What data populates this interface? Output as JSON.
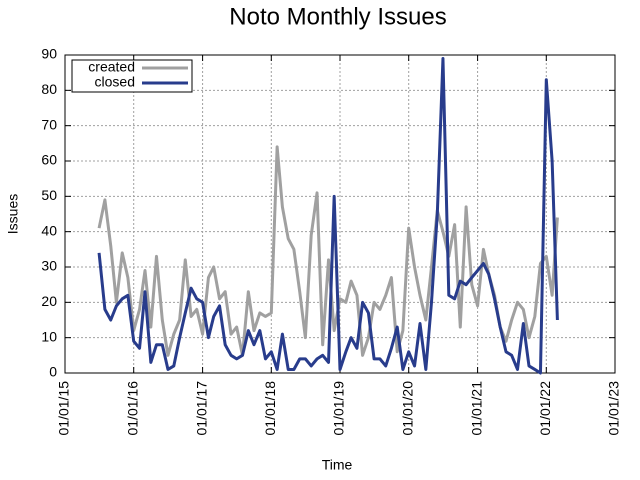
{
  "chart_data": {
    "type": "line",
    "title": "Noto Monthly Issues",
    "xlabel": "Time",
    "ylabel": "Issues",
    "x": [
      "2015-07",
      "2015-08",
      "2015-09",
      "2015-10",
      "2015-11",
      "2015-12",
      "2016-01",
      "2016-02",
      "2016-03",
      "2016-04",
      "2016-05",
      "2016-06",
      "2016-07",
      "2016-08",
      "2016-09",
      "2016-10",
      "2016-11",
      "2016-12",
      "2017-01",
      "2017-02",
      "2017-03",
      "2017-04",
      "2017-05",
      "2017-06",
      "2017-07",
      "2017-08",
      "2017-09",
      "2017-10",
      "2017-11",
      "2017-12",
      "2018-01",
      "2018-02",
      "2018-03",
      "2018-04",
      "2018-05",
      "2018-06",
      "2018-07",
      "2018-08",
      "2018-09",
      "2018-10",
      "2018-11",
      "2018-12",
      "2019-01",
      "2019-02",
      "2019-03",
      "2019-04",
      "2019-05",
      "2019-06",
      "2019-07",
      "2019-08",
      "2019-09",
      "2019-10",
      "2019-11",
      "2019-12",
      "2020-01",
      "2020-02",
      "2020-03",
      "2020-04",
      "2020-05",
      "2020-06",
      "2020-07",
      "2020-08",
      "2020-09",
      "2020-10",
      "2020-11",
      "2020-12",
      "2021-01",
      "2021-02",
      "2021-03",
      "2021-04",
      "2021-05",
      "2021-06",
      "2021-07",
      "2021-08",
      "2021-09",
      "2021-10",
      "2021-11",
      "2021-12",
      "2022-01",
      "2022-02",
      "2022-03"
    ],
    "series": [
      {
        "name": "created",
        "color": "#a0a0a0",
        "values": [
          41,
          49,
          36,
          20,
          34,
          27,
          12,
          18,
          29,
          13,
          33,
          15,
          5,
          11,
          15,
          32,
          16,
          18,
          11,
          27,
          30,
          21,
          23,
          11,
          13,
          5,
          23,
          12,
          17,
          16,
          17,
          64,
          47,
          38,
          35,
          23,
          10,
          39,
          51,
          8,
          32,
          12,
          21,
          20,
          26,
          22,
          5,
          10,
          20,
          18,
          22,
          27,
          6,
          12,
          41,
          30,
          22,
          15,
          30,
          46,
          40,
          33,
          42,
          13,
          47,
          25,
          19,
          35,
          28,
          22,
          13,
          9,
          15,
          20,
          18,
          10,
          16,
          31,
          33,
          22,
          44
        ]
      },
      {
        "name": "closed",
        "color": "#283c8c",
        "values": [
          34,
          18,
          15,
          19,
          21,
          22,
          9,
          7,
          23,
          3,
          8,
          8,
          1,
          2,
          10,
          17,
          24,
          21,
          20,
          10,
          16,
          19,
          8,
          5,
          4,
          5,
          12,
          8,
          12,
          4,
          6,
          1,
          11,
          1,
          1,
          4,
          4,
          2,
          4,
          5,
          3,
          50,
          1,
          6,
          10,
          7,
          20,
          17,
          4,
          4,
          2,
          7,
          13,
          1,
          6,
          2,
          14,
          1,
          20,
          45,
          89,
          22,
          21,
          26,
          25,
          27,
          29,
          31,
          28,
          21,
          13,
          6,
          5,
          1,
          14,
          2,
          1,
          0,
          83,
          60,
          15
        ]
      }
    ],
    "xlim": [
      "2015-01-01",
      "2023-01-01"
    ],
    "xticks": [
      {
        "value": "2015-01-01",
        "label": "01/01/15"
      },
      {
        "value": "2016-01-01",
        "label": "01/01/16"
      },
      {
        "value": "2017-01-01",
        "label": "01/01/17"
      },
      {
        "value": "2018-01-01",
        "label": "01/01/18"
      },
      {
        "value": "2019-01-01",
        "label": "01/01/19"
      },
      {
        "value": "2020-01-01",
        "label": "01/01/20"
      },
      {
        "value": "2021-01-01",
        "label": "01/01/21"
      },
      {
        "value": "2022-01-01",
        "label": "01/01/22"
      },
      {
        "value": "2023-01-01",
        "label": "01/01/23"
      }
    ],
    "ylim": [
      0,
      90
    ],
    "yticks": [
      0,
      10,
      20,
      30,
      40,
      50,
      60,
      70,
      80,
      90
    ],
    "grid": true,
    "legend": "top-left"
  }
}
